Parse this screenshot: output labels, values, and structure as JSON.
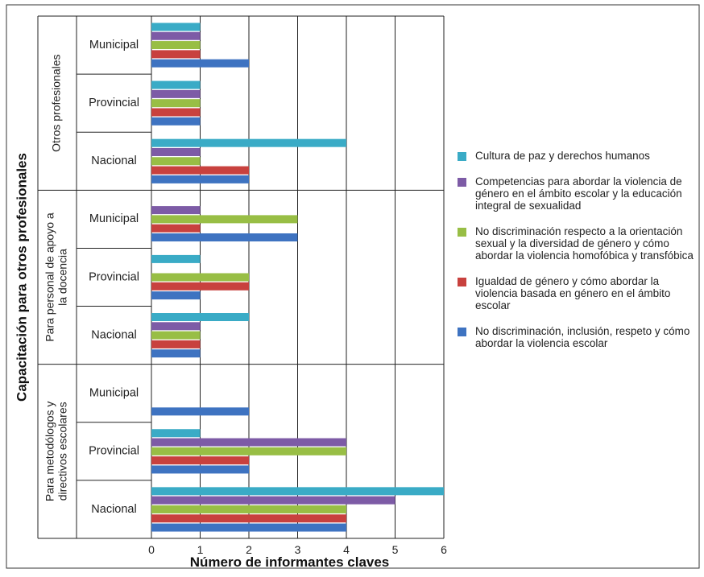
{
  "chart_data": {
    "type": "bar",
    "orientation": "horizontal",
    "ylabel": "Capacitación para otros profesionales",
    "xlabel": "Número de informantes claves",
    "xlim": [
      0,
      6
    ],
    "xticks": [
      "0",
      "1",
      "2",
      "3",
      "4",
      "5",
      "6"
    ],
    "grid": true,
    "legend_position": "right",
    "groups": [
      {
        "label": "Otros profesionales",
        "categories": [
          "Municipal",
          "Provincial",
          "Nacional"
        ]
      },
      {
        "label": "Para personal de apoyo a la docencia",
        "categories": [
          "Municipal",
          "Provincial",
          "Nacional"
        ]
      },
      {
        "label": "Para metodólogos y directivos escolares",
        "categories": [
          "Municipal",
          "Provincial",
          "Nacional"
        ]
      }
    ],
    "series": [
      {
        "name": "Cultura de paz y derechos humanos",
        "color": "#3AABC6",
        "values": [
          1,
          1,
          4,
          0,
          1,
          2,
          0,
          1,
          6
        ]
      },
      {
        "name": "Competencias para abordar la violencia de género en el ámbito escolar y la educación integral de sexualidad",
        "color": "#7D5BA6",
        "values": [
          1,
          1,
          1,
          1,
          0,
          1,
          0,
          4,
          5
        ]
      },
      {
        "name": "No discriminación respecto a la orientación sexual y la diversidad de género y cómo abordar la violencia homofóbica y transfóbica",
        "color": "#98BE45",
        "values": [
          1,
          1,
          1,
          3,
          2,
          1,
          0,
          4,
          4
        ]
      },
      {
        "name": "Igualdad de género y cómo abordar la violencia basada en género en el ámbito escolar",
        "color": "#C8413E",
        "values": [
          1,
          1,
          2,
          1,
          2,
          1,
          0,
          2,
          4
        ]
      },
      {
        "name": "No discriminación, inclusión, respeto y cómo abordar la violencia escolar",
        "color": "#3E73C1",
        "values": [
          2,
          1,
          2,
          3,
          1,
          1,
          2,
          2,
          4
        ]
      }
    ]
  }
}
